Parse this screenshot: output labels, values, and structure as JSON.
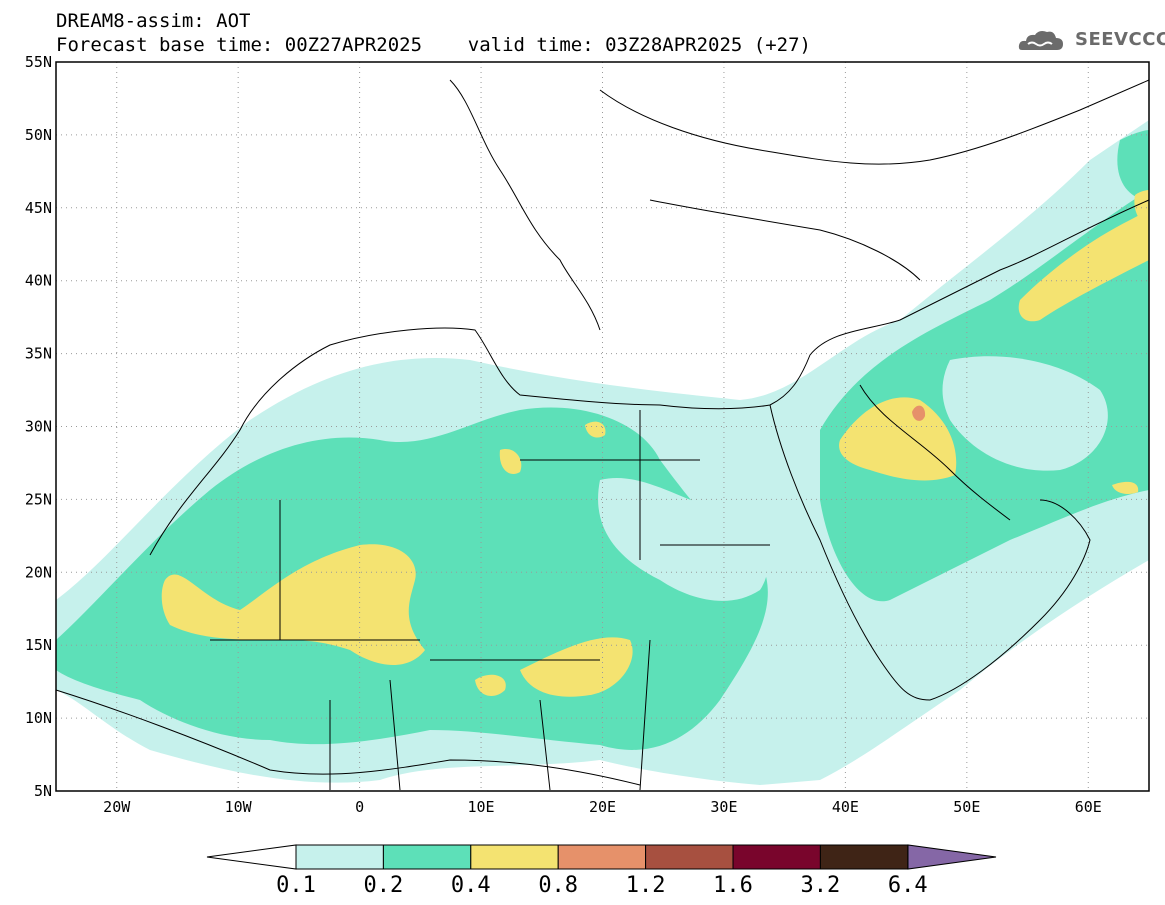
{
  "header": {
    "line1": "DREAM8-assim: AOT",
    "line2": "Forecast base time: 00Z27APR2025    valid time: 03Z28APR2025 (+27)"
  },
  "logo": {
    "text": "SEEVCCC",
    "icon": "cloud-icon"
  },
  "map": {
    "lat_labels": [
      "55N",
      "50N",
      "45N",
      "40N",
      "35N",
      "30N",
      "25N",
      "20N",
      "15N",
      "10N",
      "5N"
    ],
    "lon_labels": [
      "20W",
      "10W",
      "0",
      "10E",
      "20E",
      "30E",
      "40E",
      "50E",
      "60E"
    ],
    "extent": {
      "lon": [
        -25,
        65
      ],
      "lat": [
        5,
        55
      ]
    },
    "gridlines": "dotted"
  },
  "legend": {
    "labels": [
      "0.1",
      "0.2",
      "0.4",
      "0.8",
      "1.2",
      "1.6",
      "3.2",
      "6.4"
    ],
    "colors": {
      "below": "#ffffff",
      "b01_02": "#c6f1ec",
      "b02_04": "#5de0b8",
      "b04_08": "#f4e371",
      "b08_12": "#e6916a",
      "b12_16": "#a75040",
      "b16_32": "#79052c",
      "b32_64": "#3f2416",
      "above": "#8567a6"
    }
  }
}
